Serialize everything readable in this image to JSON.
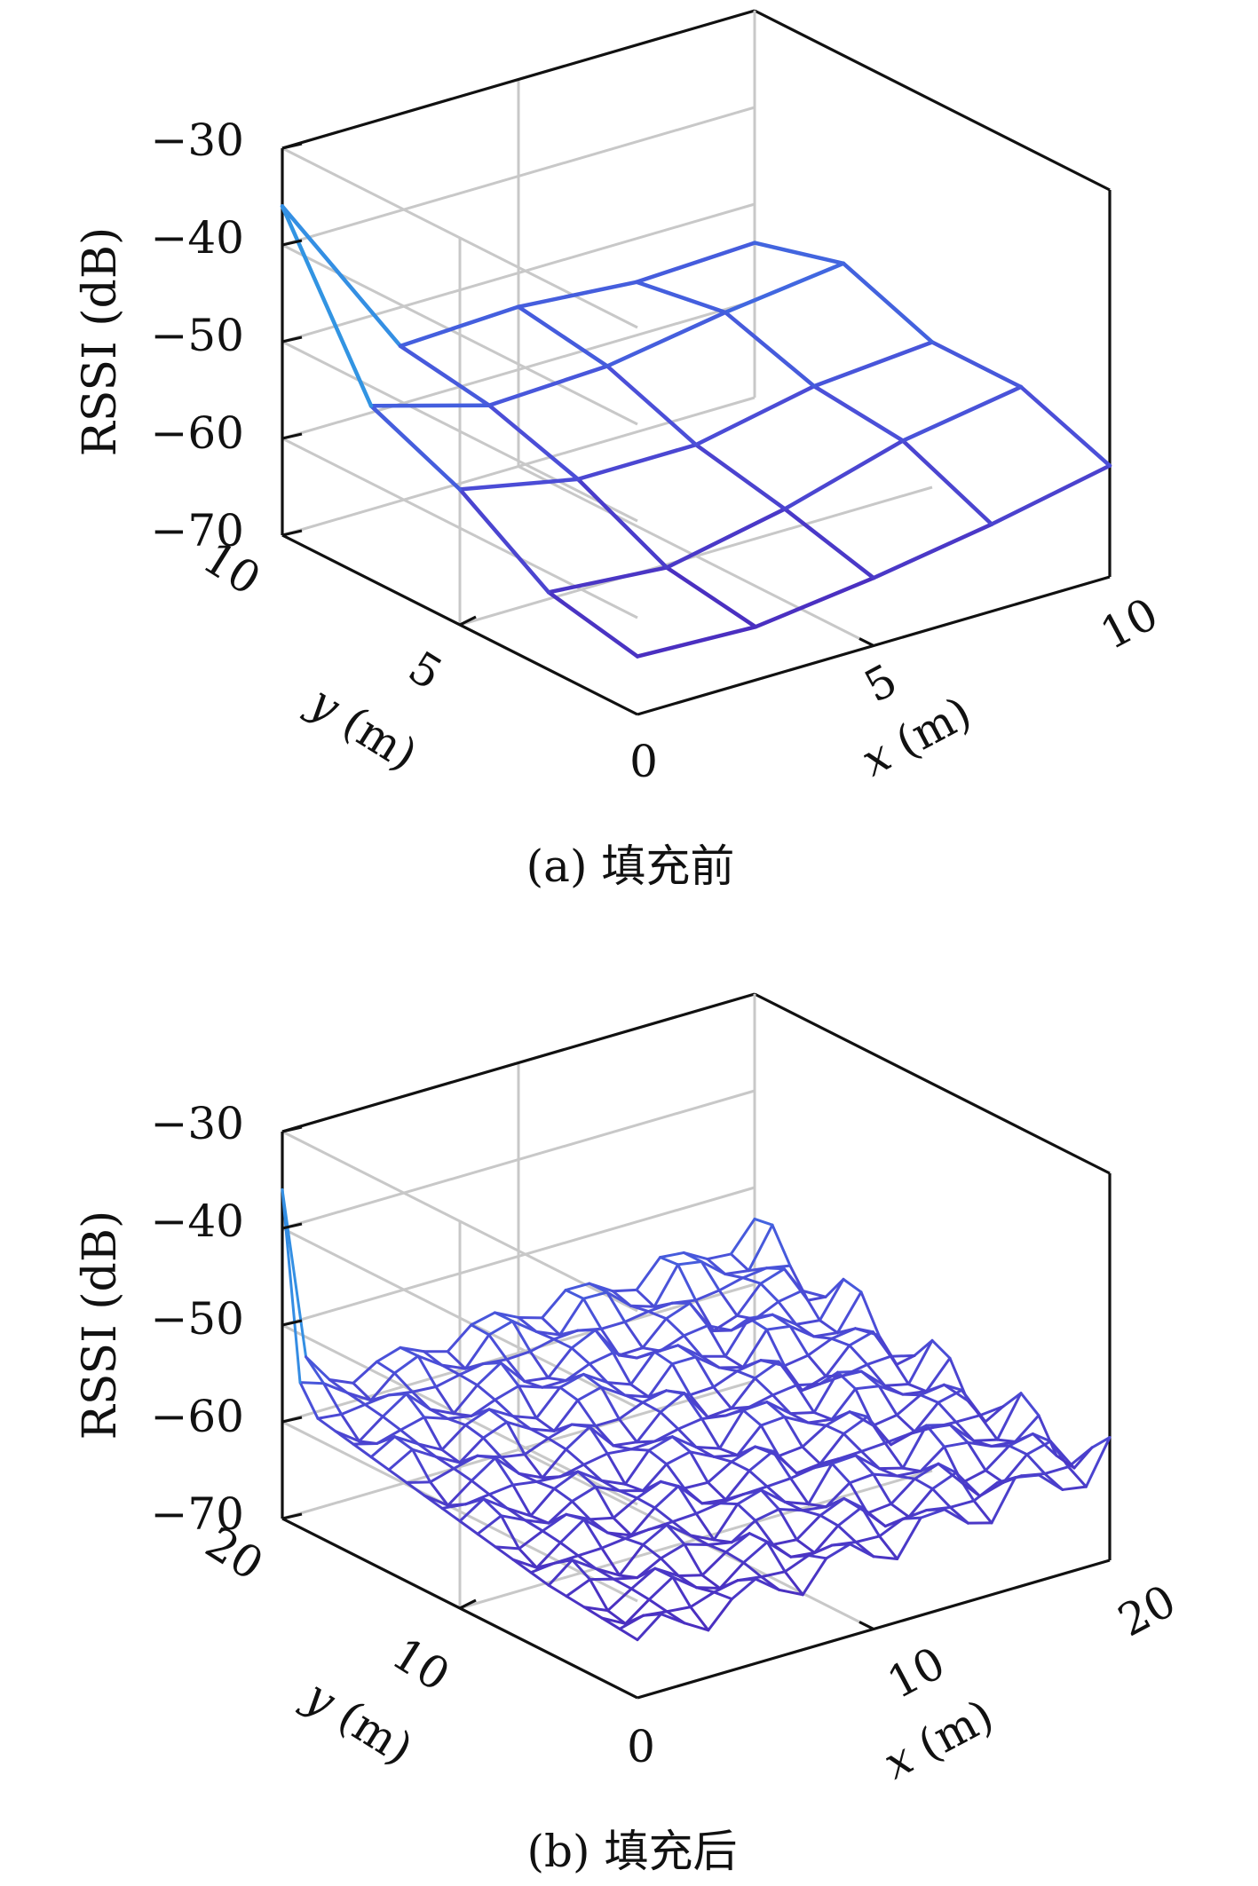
{
  "chart_data": [
    {
      "type": "surface",
      "caption": "(a) 填充前",
      "xlabel_var": "x",
      "xlabel_unit": " (m)",
      "ylabel_var": "y",
      "ylabel_unit": " (m)",
      "zlabel": "RSSI (dB)",
      "xlim": [
        0,
        10
      ],
      "ylim": [
        0,
        10
      ],
      "zlim": [
        -70,
        -30
      ],
      "x_ticks": [
        "5",
        "10"
      ],
      "y_ticks": [
        "5",
        "10"
      ],
      "origin_tick": "0",
      "z_ticks": [
        "−30",
        "−40",
        "−50",
        "−60",
        "−70"
      ],
      "grid": true,
      "colormap": [
        "#27b8a0",
        "#2fa0e0",
        "#3a78e6",
        "#4b4fd8",
        "#4a2fc0"
      ],
      "x": [
        0,
        2.5,
        5,
        7.5,
        10
      ],
      "y": [
        0,
        2.5,
        5,
        7.5,
        10
      ],
      "z": [
        [
          -64.0,
          -64.5,
          -63.0,
          -61.0,
          -58.5
        ],
        [
          -62.0,
          -63.0,
          -60.5,
          -57.0,
          -55.0
        ],
        [
          -56.0,
          -58.5,
          -58.5,
          -56.0,
          -55.0
        ],
        [
          -52.0,
          -55.5,
          -55.0,
          -53.0,
          -51.5
        ],
        [
          -36.0,
          -54.0,
          -53.5,
          -54.5,
          -54.0
        ]
      ]
    },
    {
      "type": "surface",
      "caption": "(b) 填充后",
      "xlabel_var": "x",
      "xlabel_unit": " (m)",
      "ylabel_var": "y",
      "ylabel_unit": " (m)",
      "zlabel": "RSSI (dB)",
      "xlim": [
        0,
        20
      ],
      "ylim": [
        0,
        20
      ],
      "zlim": [
        -70,
        -30
      ],
      "x_ticks": [
        "10",
        "20"
      ],
      "y_ticks": [
        "10",
        "20"
      ],
      "origin_tick": "0",
      "z_ticks": [
        "−30",
        "−40",
        "−50",
        "−60",
        "−70"
      ],
      "grid": true,
      "colormap": [
        "#27b8a0",
        "#2fa0e0",
        "#3a78e6",
        "#4b4fd8",
        "#4a2fc0"
      ],
      "x_range": [
        0,
        20
      ],
      "y_range": [
        0,
        20
      ],
      "grid_points": 21,
      "base_corners": [
        [
          -64,
          -63,
          -62,
          -61,
          -60
        ],
        [
          -63,
          -62,
          -61,
          -60,
          -60
        ],
        [
          -61,
          -61,
          -60,
          -59,
          -59
        ],
        [
          -59,
          -59,
          -58,
          -58,
          -57
        ],
        [
          -57,
          -57,
          -56,
          -56,
          -55
        ]
      ],
      "spike": {
        "x": 0,
        "y": 20,
        "z": -36
      },
      "ripple_amplitude": 3.5
    }
  ]
}
